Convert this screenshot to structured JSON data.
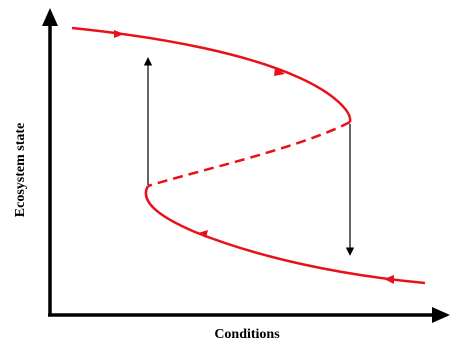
{
  "diagram": {
    "x_axis_label": "Conditions",
    "y_axis_label": "Ecosystem state",
    "colors": {
      "curve": "#e8111a",
      "axis": "#000000",
      "transition_arrow": "#000000"
    }
  }
}
